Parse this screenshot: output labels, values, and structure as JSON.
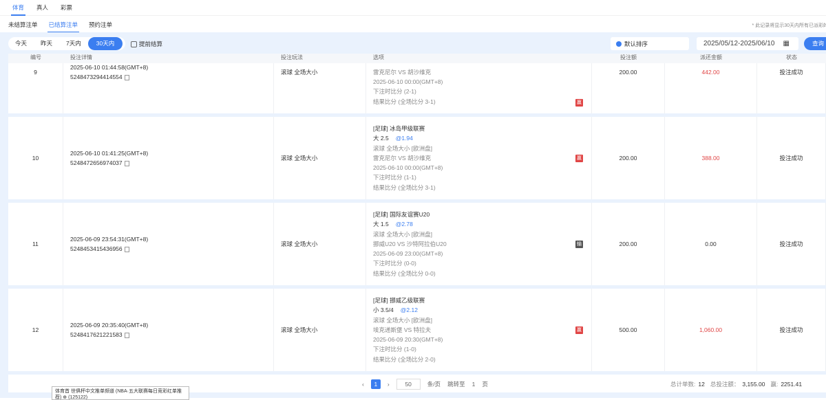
{
  "tabs": [
    "体育",
    "真人",
    "彩票"
  ],
  "subtabs": [
    "未结算注单",
    "已结算注单",
    "预约注单"
  ],
  "notice": "* 此记录将显示30天内所有已派彩的投",
  "filters": {
    "ranges": [
      "今天",
      "昨天",
      "7天内",
      "30天内"
    ],
    "advance_label": "提前结算",
    "sort_label": "默认排序",
    "date_range": "2025/05/12-2025/06/10",
    "query_label": "查询"
  },
  "columns": [
    "编号",
    "投注详情",
    "投注玩法",
    "选项",
    "投注额",
    "派还金额",
    "状态"
  ],
  "rows": [
    {
      "no": "9",
      "time": "2025-06-10 01:44:58(GMT+8)",
      "id": "5248473294414554",
      "play": "滚球  全场大小",
      "options": [
        "雷克尼尔 VS 胡沙维克",
        "2025-06-10 00:00(GMT+8)",
        "下注时比分 (2-1)",
        "结果比分 (全场比分 3-1)"
      ],
      "result": "赢",
      "stake": "200.00",
      "ret": "442.00",
      "status": "投注成功"
    },
    {
      "no": "10",
      "time": "2025-06-10 01:41:25(GMT+8)",
      "id": "5248472656974037",
      "play": "滚球  全场大小",
      "league": "[足球] 冰岛甲级联赛",
      "pick": "大 2.5",
      "odds": "@1.94",
      "options": [
        "滚球  全场大小 [欧洲盘]",
        "雷克尼尔 VS 胡沙维克",
        "2025-06-10 00:00(GMT+8)",
        "下注时比分 (1-1)",
        "结果比分 (全场比分 3-1)"
      ],
      "result": "赢",
      "stake": "200.00",
      "ret": "388.00",
      "status": "投注成功"
    },
    {
      "no": "11",
      "time": "2025-06-09 23:54:31(GMT+8)",
      "id": "5248453415436956",
      "play": "滚球  全场大小",
      "league": "[足球] 国际友谊赛U20",
      "pick": "大 1.5",
      "odds": "@2.78",
      "options": [
        "滚球  全场大小 [欧洲盘]",
        "挪威U20 VS 沙特阿拉伯U20",
        "2025-06-09 23:00(GMT+8)",
        "下注时比分 (0-0)",
        "结果比分 (全场比分 0-0)"
      ],
      "result": "输",
      "stake": "200.00",
      "ret": "0.00",
      "status": "投注成功"
    },
    {
      "no": "12",
      "time": "2025-06-09 20:35:40(GMT+8)",
      "id": "5248417621221583",
      "play": "滚球  全场大小",
      "league": "[足球] 挪威乙级联赛",
      "pick": "小 3.5/4",
      "odds": "@2.12",
      "options": [
        "滚球  全场大小 [欧洲盘]",
        "埃克递斯堡 VS 特拉夫",
        "2025-06-09 20:30(GMT+8)",
        "下注时比分 (1-0)",
        "结果比分 (全场比分 2-0)"
      ],
      "result": "赢",
      "stake": "500.00",
      "ret": "1,060.00",
      "status": "投注成功"
    }
  ],
  "colors": {
    "accent": "#3b7ef0",
    "win": "#e04545",
    "lose": "#555555"
  },
  "pager": {
    "current": "1",
    "page_size": "50",
    "per_page": "条/页",
    "jump": "跳转至",
    "jump_page": "1",
    "page_unit": "页"
  },
  "totals": {
    "count_label": "总计单数:",
    "count": "12",
    "stake_label": "总投注额：",
    "stake": "3,155.00",
    "win_label": "赢:",
    "win": "2251.41"
  },
  "tooltip": "体育首 世俱杯中文推单频道 (NBA·五大联赛每日竞彩红单推荐) ⊕ (125122)"
}
